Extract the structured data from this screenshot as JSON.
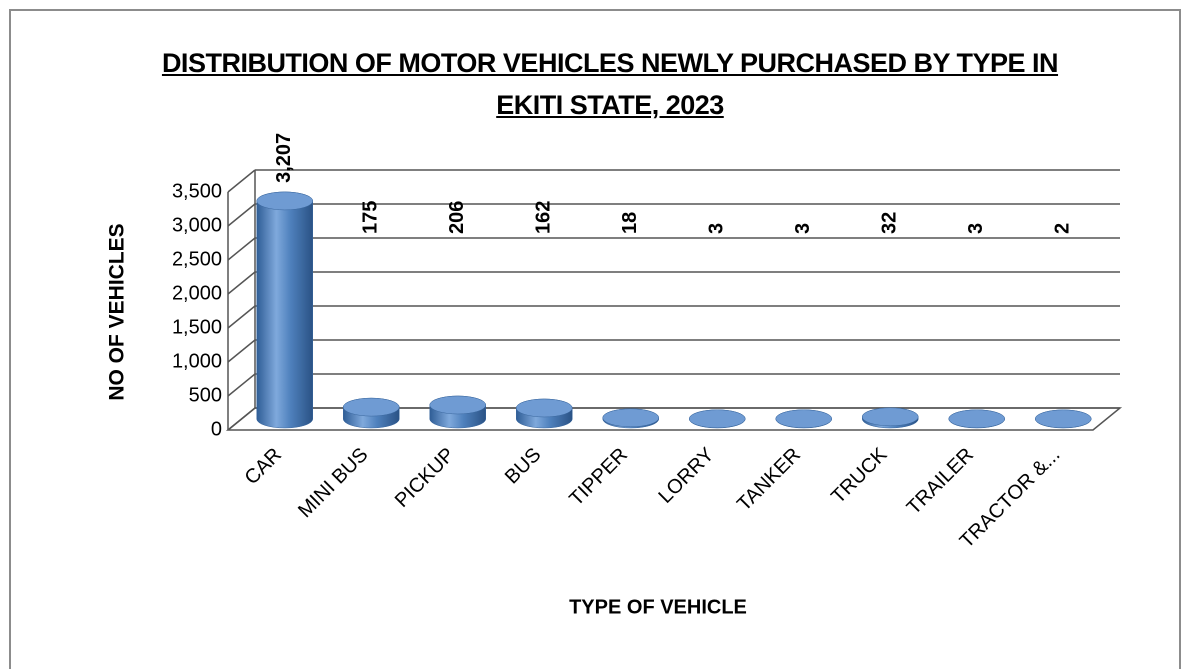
{
  "chart_data": {
    "type": "bar",
    "title": "DISTRIBUTION OF MOTOR VEHICLES NEWLY PURCHASED BY TYPE IN EKITI STATE, 2023",
    "xlabel": "TYPE OF VEHICLE",
    "ylabel": "NO OF VEHICLES",
    "categories": [
      "CAR",
      "MINI BUS",
      "PICKUP",
      "BUS",
      "TIPPER",
      "LORRY",
      "TANKER",
      "TRUCK",
      "TRAILER",
      "TRACTOR &..."
    ],
    "values": [
      3207,
      175,
      206,
      162,
      18,
      3,
      3,
      32,
      3,
      2
    ],
    "value_labels": [
      "3,207",
      "175",
      "206",
      "162",
      "18",
      "3",
      "3",
      "32",
      "3",
      "2"
    ],
    "color": "#4f81bd",
    "ylim": [
      0,
      3500
    ],
    "yticks": [
      0,
      500,
      {
        "value": 1000,
        "label": "1,000"
      },
      {
        "value": 1500,
        "label": "1,500"
      },
      {
        "value": 2000,
        "label": "2,000"
      },
      {
        "value": 2500,
        "label": "2,500"
      },
      {
        "value": 3000,
        "label": "3,000"
      },
      {
        "value": 3500,
        "label": "3,500"
      }
    ],
    "grid": true
  }
}
